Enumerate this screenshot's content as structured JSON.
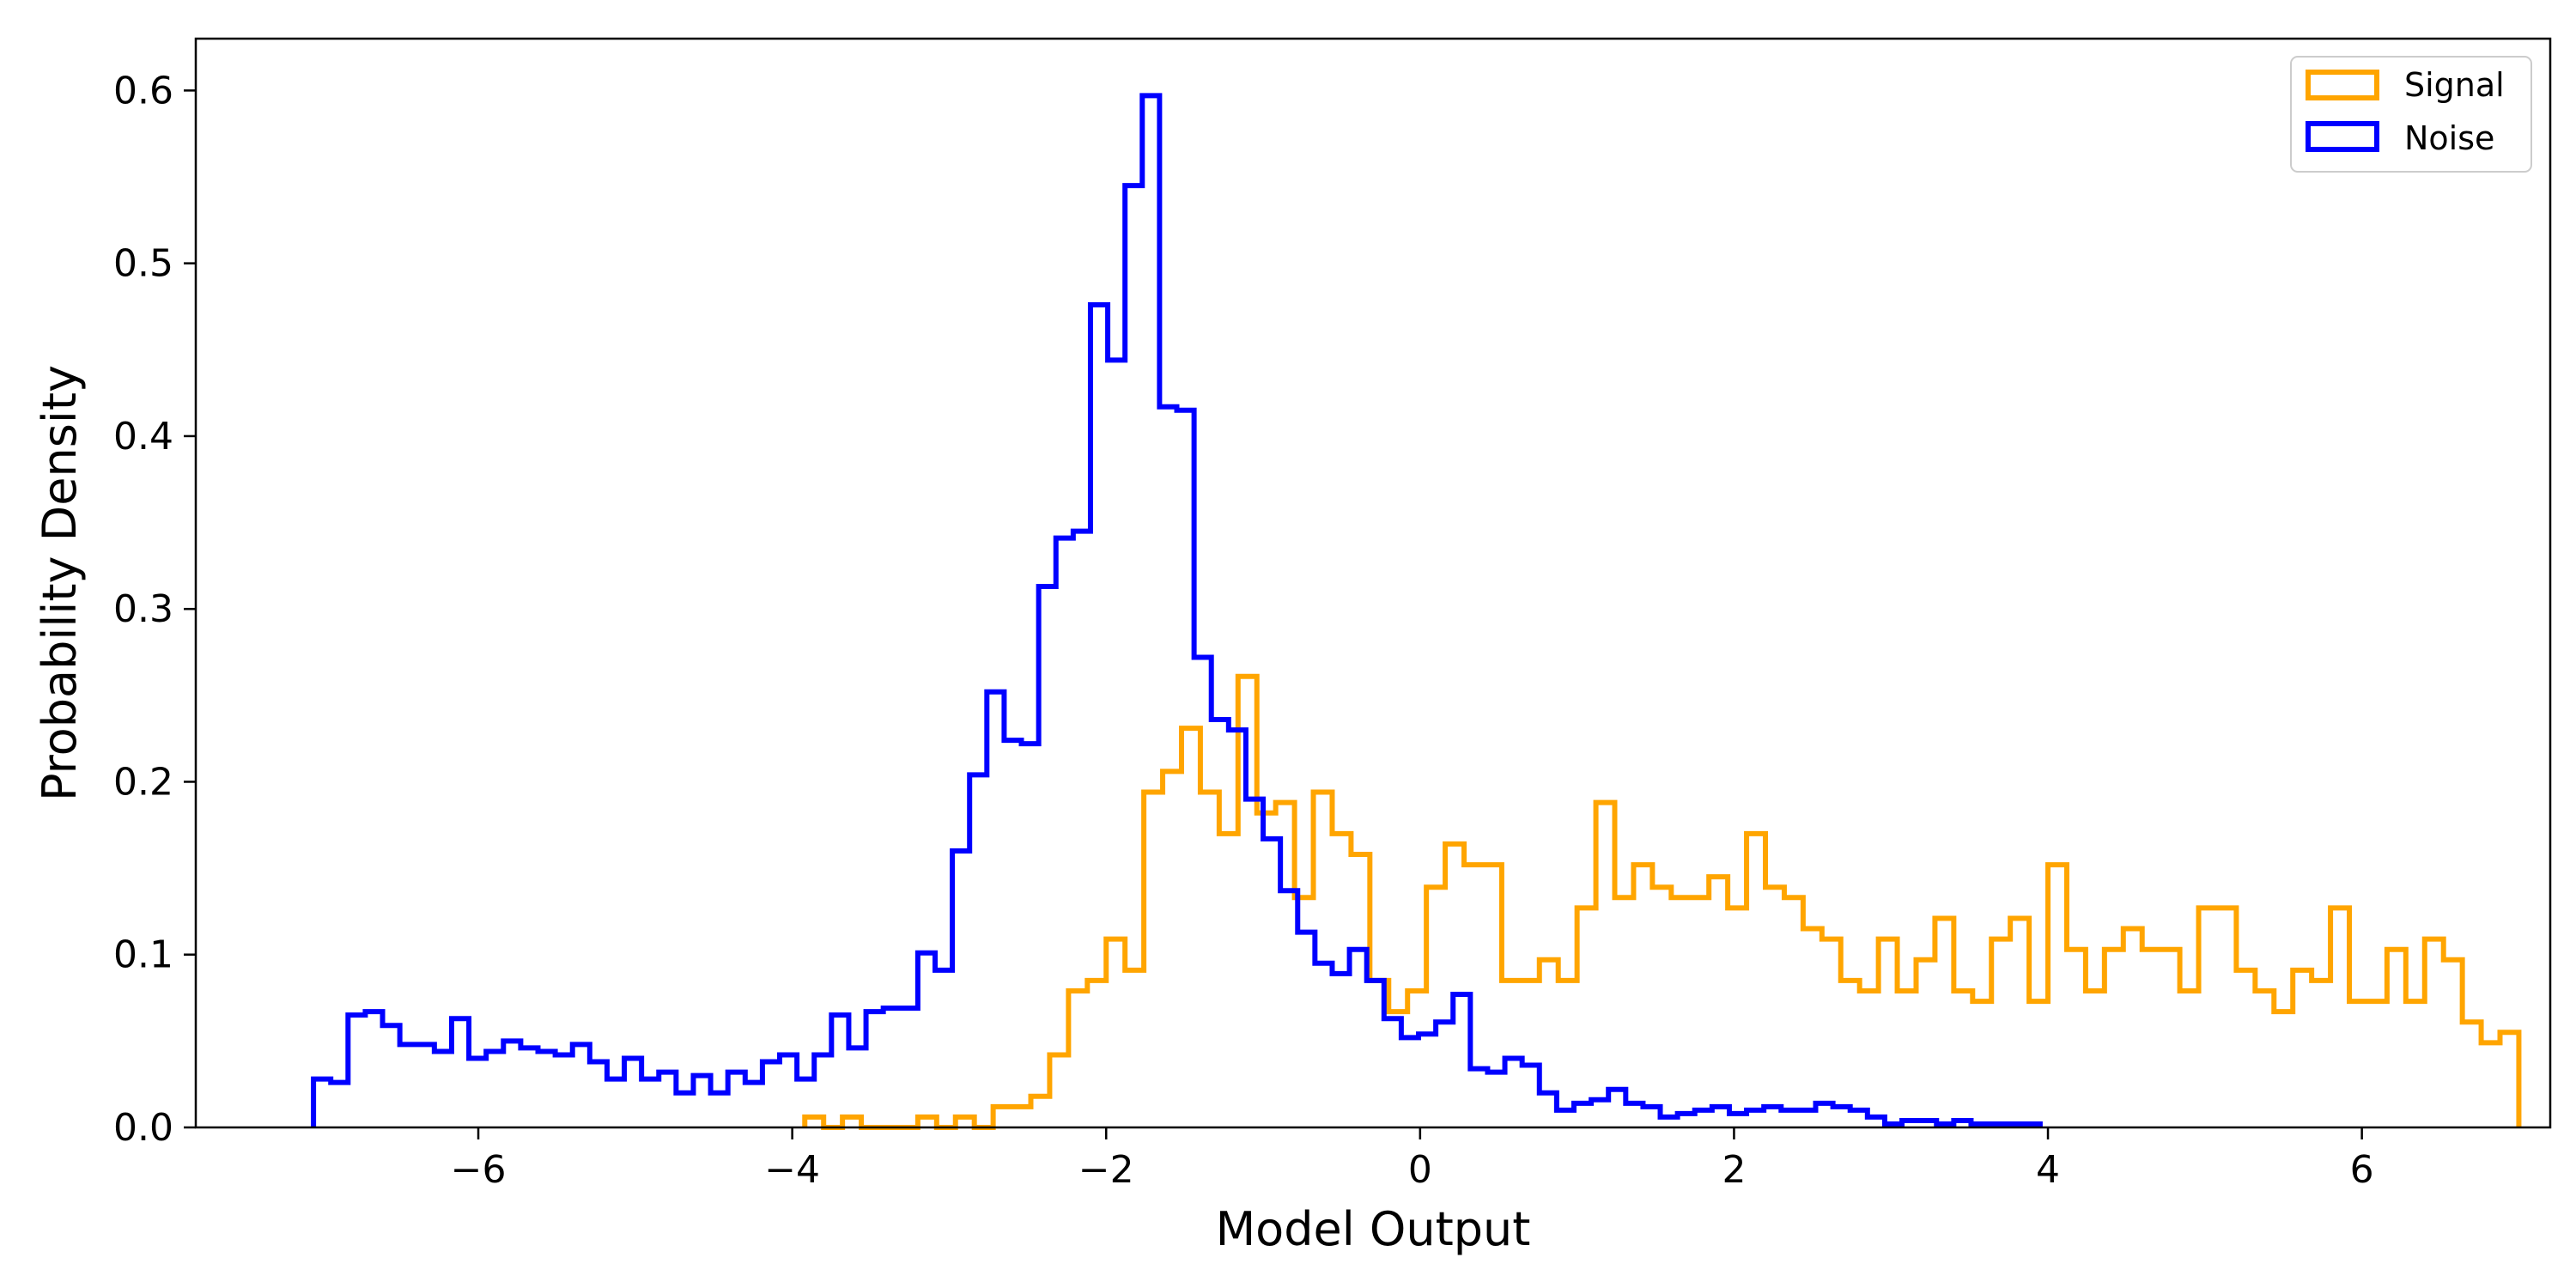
{
  "chart_data": {
    "type": "histogram",
    "xlabel": "Model Output",
    "ylabel": "Probability Density",
    "xlim": [
      -7.8,
      7.2
    ],
    "ylim": [
      0,
      0.63
    ],
    "x_ticks": [
      -6,
      -4,
      -2,
      0,
      2,
      4,
      6
    ],
    "x_tick_labels": [
      "−6",
      "−4",
      "−2",
      "0",
      "2",
      "4",
      "6"
    ],
    "y_ticks": [
      0.0,
      0.1,
      0.2,
      0.3,
      0.4,
      0.5,
      0.6
    ],
    "y_tick_labels": [
      "0.0",
      "0.1",
      "0.2",
      "0.3",
      "0.4",
      "0.5",
      "0.6"
    ],
    "grid": false,
    "legend_position": "top-right",
    "series": [
      {
        "name": "Signal",
        "color": "#FFA500",
        "bins": [
          [
            -3.92,
            -3.8,
            0.006
          ],
          [
            -3.8,
            -3.68,
            0.0
          ],
          [
            -3.68,
            -3.56,
            0.006
          ],
          [
            -3.56,
            -3.44,
            0.0
          ],
          [
            -3.44,
            -3.32,
            0.0
          ],
          [
            -3.32,
            -3.2,
            0.0
          ],
          [
            -3.2,
            -3.08,
            0.006
          ],
          [
            -3.08,
            -2.96,
            0.0
          ],
          [
            -2.96,
            -2.84,
            0.006
          ],
          [
            -2.84,
            -2.72,
            0.0
          ],
          [
            -2.72,
            -2.6,
            0.012
          ],
          [
            -2.6,
            -2.48,
            0.012
          ],
          [
            -2.48,
            -2.36,
            0.018
          ],
          [
            -2.36,
            -2.24,
            0.042
          ],
          [
            -2.24,
            -2.12,
            0.079
          ],
          [
            -2.12,
            -2.0,
            0.085
          ],
          [
            -2.0,
            -1.88,
            0.109
          ],
          [
            -1.88,
            -1.76,
            0.091
          ],
          [
            -1.76,
            -1.64,
            0.194
          ],
          [
            -1.64,
            -1.52,
            0.206
          ],
          [
            -1.52,
            -1.4,
            0.231
          ],
          [
            -1.4,
            -1.28,
            0.194
          ],
          [
            -1.28,
            -1.16,
            0.17
          ],
          [
            -1.16,
            -1.04,
            0.261
          ],
          [
            -1.04,
            -0.92,
            0.182
          ],
          [
            -0.92,
            -0.8,
            0.188
          ],
          [
            -0.8,
            -0.68,
            0.133
          ],
          [
            -0.68,
            -0.56,
            0.194
          ],
          [
            -0.56,
            -0.44,
            0.17
          ],
          [
            -0.44,
            -0.32,
            0.158
          ],
          [
            -0.32,
            -0.2,
            0.085
          ],
          [
            -0.2,
            -0.08,
            0.067
          ],
          [
            -0.08,
            0.04,
            0.079
          ],
          [
            0.04,
            0.16,
            0.139
          ],
          [
            0.16,
            0.28,
            0.164
          ],
          [
            0.28,
            0.4,
            0.152
          ],
          [
            0.4,
            0.52,
            0.152
          ],
          [
            0.52,
            0.64,
            0.085
          ],
          [
            0.64,
            0.76,
            0.085
          ],
          [
            0.76,
            0.88,
            0.097
          ],
          [
            0.88,
            1.0,
            0.085
          ],
          [
            1.0,
            1.12,
            0.127
          ],
          [
            1.12,
            1.24,
            0.188
          ],
          [
            1.24,
            1.36,
            0.133
          ],
          [
            1.36,
            1.48,
            0.152
          ],
          [
            1.48,
            1.6,
            0.139
          ],
          [
            1.6,
            1.72,
            0.133
          ],
          [
            1.72,
            1.84,
            0.133
          ],
          [
            1.84,
            1.96,
            0.145
          ],
          [
            1.96,
            2.08,
            0.127
          ],
          [
            2.08,
            2.2,
            0.17
          ],
          [
            2.2,
            2.32,
            0.139
          ],
          [
            2.32,
            2.44,
            0.133
          ],
          [
            2.44,
            2.56,
            0.115
          ],
          [
            2.56,
            2.68,
            0.109
          ],
          [
            2.68,
            2.8,
            0.085
          ],
          [
            2.8,
            2.92,
            0.079
          ],
          [
            2.92,
            3.04,
            0.109
          ],
          [
            3.04,
            3.16,
            0.079
          ],
          [
            3.16,
            3.28,
            0.097
          ],
          [
            3.28,
            3.4,
            0.121
          ],
          [
            3.4,
            3.52,
            0.079
          ],
          [
            3.52,
            3.64,
            0.073
          ],
          [
            3.64,
            3.76,
            0.109
          ],
          [
            3.76,
            3.88,
            0.121
          ],
          [
            3.88,
            4.0,
            0.073
          ],
          [
            4.0,
            4.12,
            0.152
          ],
          [
            4.12,
            4.24,
            0.103
          ],
          [
            4.24,
            4.36,
            0.079
          ],
          [
            4.36,
            4.48,
            0.103
          ],
          [
            4.48,
            4.6,
            0.115
          ],
          [
            4.6,
            4.72,
            0.103
          ],
          [
            4.72,
            4.84,
            0.103
          ],
          [
            4.84,
            4.96,
            0.079
          ],
          [
            4.96,
            5.08,
            0.127
          ],
          [
            5.08,
            5.2,
            0.127
          ],
          [
            5.2,
            5.32,
            0.091
          ],
          [
            5.32,
            5.44,
            0.079
          ],
          [
            5.44,
            5.56,
            0.067
          ],
          [
            5.56,
            5.68,
            0.091
          ],
          [
            5.68,
            5.8,
            0.085
          ],
          [
            5.8,
            5.92,
            0.127
          ],
          [
            5.92,
            6.04,
            0.073
          ],
          [
            6.04,
            6.16,
            0.073
          ],
          [
            6.16,
            6.28,
            0.103
          ],
          [
            6.28,
            6.4,
            0.073
          ],
          [
            6.4,
            6.52,
            0.109
          ],
          [
            6.52,
            6.64,
            0.097
          ],
          [
            6.64,
            6.76,
            0.061
          ],
          [
            6.76,
            6.88,
            0.049
          ],
          [
            6.88,
            7.0,
            0.055
          ]
        ]
      },
      {
        "name": "Noise",
        "color": "#0000FF",
        "bins": [
          [
            -7.05,
            -6.94,
            0.028
          ],
          [
            -6.94,
            -6.83,
            0.026
          ],
          [
            -6.83,
            -6.72,
            0.065
          ],
          [
            -6.72,
            -6.61,
            0.067
          ],
          [
            -6.61,
            -6.5,
            0.059
          ],
          [
            -6.5,
            -6.39,
            0.048
          ],
          [
            -6.39,
            -6.28,
            0.048
          ],
          [
            -6.28,
            -6.17,
            0.044
          ],
          [
            -6.17,
            -6.06,
            0.063
          ],
          [
            -6.06,
            -5.95,
            0.04
          ],
          [
            -5.95,
            -5.84,
            0.044
          ],
          [
            -5.84,
            -5.73,
            0.05
          ],
          [
            -5.73,
            -5.62,
            0.046
          ],
          [
            -5.62,
            -5.51,
            0.044
          ],
          [
            -5.51,
            -5.4,
            0.042
          ],
          [
            -5.4,
            -5.29,
            0.048
          ],
          [
            -5.29,
            -5.18,
            0.038
          ],
          [
            -5.18,
            -5.07,
            0.028
          ],
          [
            -5.07,
            -4.96,
            0.04
          ],
          [
            -4.96,
            -4.85,
            0.028
          ],
          [
            -4.85,
            -4.74,
            0.032
          ],
          [
            -4.74,
            -4.63,
            0.02
          ],
          [
            -4.63,
            -4.52,
            0.03
          ],
          [
            -4.52,
            -4.41,
            0.02
          ],
          [
            -4.41,
            -4.3,
            0.032
          ],
          [
            -4.3,
            -4.19,
            0.026
          ],
          [
            -4.19,
            -4.08,
            0.038
          ],
          [
            -4.08,
            -3.97,
            0.042
          ],
          [
            -3.97,
            -3.86,
            0.028
          ],
          [
            -3.86,
            -3.75,
            0.042
          ],
          [
            -3.75,
            -3.64,
            0.065
          ],
          [
            -3.64,
            -3.53,
            0.046
          ],
          [
            -3.53,
            -3.42,
            0.067
          ],
          [
            -3.42,
            -3.31,
            0.069
          ],
          [
            -3.31,
            -3.2,
            0.069
          ],
          [
            -3.2,
            -3.09,
            0.101
          ],
          [
            -3.09,
            -2.98,
            0.091
          ],
          [
            -2.98,
            -2.87,
            0.16
          ],
          [
            -2.87,
            -2.76,
            0.204
          ],
          [
            -2.76,
            -2.65,
            0.252
          ],
          [
            -2.65,
            -2.54,
            0.224
          ],
          [
            -2.54,
            -2.43,
            0.222
          ],
          [
            -2.43,
            -2.32,
            0.313
          ],
          [
            -2.32,
            -2.21,
            0.341
          ],
          [
            -2.21,
            -2.1,
            0.345
          ],
          [
            -2.1,
            -1.99,
            0.476
          ],
          [
            -1.99,
            -1.88,
            0.444
          ],
          [
            -1.88,
            -1.77,
            0.545
          ],
          [
            -1.77,
            -1.66,
            0.597
          ],
          [
            -1.66,
            -1.55,
            0.417
          ],
          [
            -1.55,
            -1.44,
            0.415
          ],
          [
            -1.44,
            -1.33,
            0.272
          ],
          [
            -1.33,
            -1.22,
            0.236
          ],
          [
            -1.22,
            -1.11,
            0.23
          ],
          [
            -1.11,
            -1.0,
            0.19
          ],
          [
            -1.0,
            -0.89,
            0.167
          ],
          [
            -0.89,
            -0.78,
            0.137
          ],
          [
            -0.78,
            -0.67,
            0.113
          ],
          [
            -0.67,
            -0.56,
            0.095
          ],
          [
            -0.56,
            -0.45,
            0.089
          ],
          [
            -0.45,
            -0.34,
            0.103
          ],
          [
            -0.34,
            -0.23,
            0.085
          ],
          [
            -0.23,
            -0.12,
            0.063
          ],
          [
            -0.12,
            -0.01,
            0.052
          ],
          [
            -0.01,
            0.1,
            0.054
          ],
          [
            0.1,
            0.21,
            0.061
          ],
          [
            0.21,
            0.32,
            0.077
          ],
          [
            0.32,
            0.43,
            0.034
          ],
          [
            0.43,
            0.54,
            0.032
          ],
          [
            0.54,
            0.65,
            0.04
          ],
          [
            0.65,
            0.76,
            0.036
          ],
          [
            0.76,
            0.87,
            0.02
          ],
          [
            0.87,
            0.98,
            0.01
          ],
          [
            0.98,
            1.09,
            0.014
          ],
          [
            1.09,
            1.2,
            0.016
          ],
          [
            1.2,
            1.31,
            0.022
          ],
          [
            1.31,
            1.42,
            0.014
          ],
          [
            1.42,
            1.53,
            0.012
          ],
          [
            1.53,
            1.64,
            0.006
          ],
          [
            1.64,
            1.75,
            0.008
          ],
          [
            1.75,
            1.86,
            0.01
          ],
          [
            1.86,
            1.97,
            0.012
          ],
          [
            1.97,
            2.08,
            0.008
          ],
          [
            2.08,
            2.19,
            0.01
          ],
          [
            2.19,
            2.3,
            0.012
          ],
          [
            2.3,
            2.41,
            0.01
          ],
          [
            2.41,
            2.52,
            0.01
          ],
          [
            2.52,
            2.63,
            0.014
          ],
          [
            2.63,
            2.74,
            0.012
          ],
          [
            2.74,
            2.85,
            0.01
          ],
          [
            2.85,
            2.96,
            0.006
          ],
          [
            2.96,
            3.07,
            0.002
          ],
          [
            3.07,
            3.18,
            0.004
          ],
          [
            3.18,
            3.29,
            0.004
          ],
          [
            3.29,
            3.4,
            0.002
          ],
          [
            3.4,
            3.51,
            0.004
          ],
          [
            3.51,
            3.62,
            0.002
          ],
          [
            3.62,
            3.73,
            0.002
          ],
          [
            3.73,
            3.84,
            0.002
          ],
          [
            3.84,
            3.95,
            0.002
          ]
        ]
      }
    ]
  }
}
